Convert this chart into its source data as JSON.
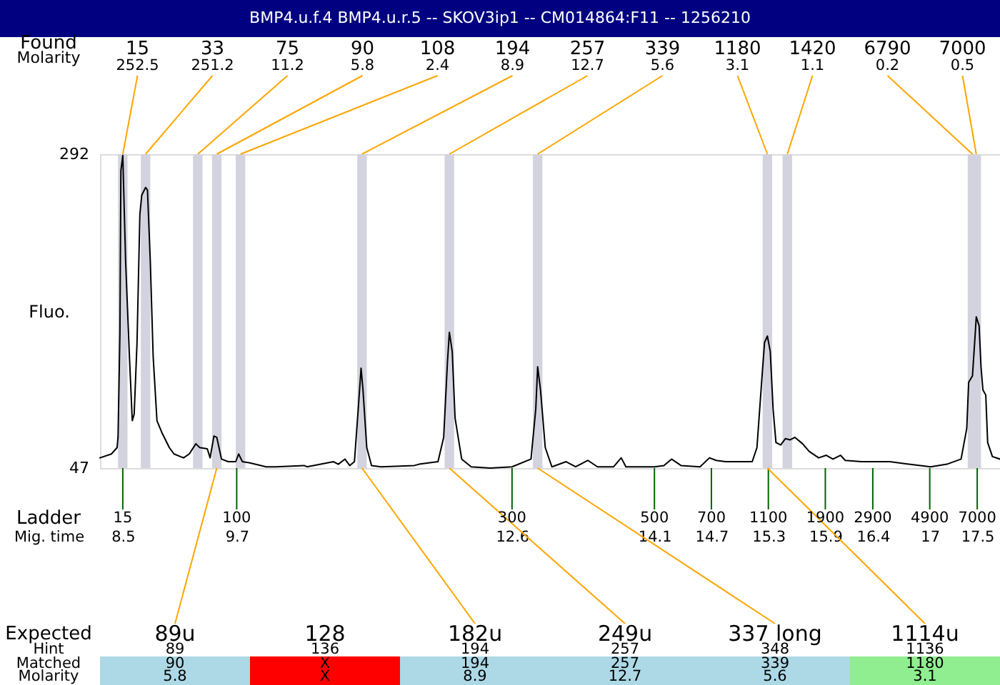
{
  "chart_data": {
    "type": "line",
    "title": "BMP4.u.f.4  BMP4.u.r.5 -- SKOV3ip1 -- CM014864:F11 -- 1256210",
    "ylabel": "Fluo.",
    "xlabel": "Mig. time",
    "xlim": [
      8.26,
      17.74
    ],
    "xticks": [
      8.5,
      9.7,
      12.6,
      14.1,
      14.7,
      15.3,
      15.9,
      16.4,
      17,
      17.5
    ],
    "ylim": [
      47,
      292
    ],
    "yticks": [
      47,
      292
    ],
    "series": [
      {
        "color": "#000000",
        "x": [
          8.26,
          8.38,
          8.44,
          8.45,
          8.47,
          8.48,
          8.5,
          8.53,
          8.57,
          8.6,
          8.62,
          8.65,
          8.68,
          8.7,
          8.74,
          8.76,
          8.79,
          8.82,
          8.86,
          8.91,
          8.99,
          9.04,
          9.14,
          9.2,
          9.27,
          9.31,
          9.39,
          9.42,
          9.46,
          9.49,
          9.54,
          9.61,
          9.69,
          9.72,
          9.76,
          9.84,
          10.01,
          10.11,
          10.41,
          10.44,
          10.72,
          10.77,
          10.84,
          10.89,
          10.94,
          10.98,
          11.01,
          11.03,
          11.07,
          11.12,
          11.22,
          11.57,
          11.62,
          11.82,
          11.88,
          11.92,
          11.94,
          11.97,
          12.0,
          12.07,
          12.17,
          12.37,
          12.6,
          12.8,
          12.85,
          12.87,
          12.9,
          12.95,
          13.02,
          13.17,
          13.27,
          13.4,
          13.5,
          13.67,
          13.75,
          13.8,
          14.1,
          14.2,
          14.28,
          14.38,
          14.58,
          14.68,
          14.75,
          14.85,
          15.13,
          15.18,
          15.23,
          15.26,
          15.29,
          15.32,
          15.35,
          15.38,
          15.43,
          15.48,
          15.53,
          15.58,
          15.66,
          15.73,
          15.83,
          15.91,
          15.98,
          16.06,
          16.11,
          16.28,
          16.58,
          16.78,
          17.01,
          17.18,
          17.33,
          17.39,
          17.41,
          17.45,
          17.48,
          17.49,
          17.52,
          17.54,
          17.56,
          17.59,
          17.61,
          17.66,
          17.74
        ],
        "values": [
          55,
          58,
          63,
          71,
          153,
          279,
          291,
          208,
          134,
          84,
          89,
          145,
          245,
          260,
          266,
          264,
          208,
          134,
          84,
          75,
          63,
          58,
          55,
          58,
          66,
          63,
          62,
          55,
          72,
          71,
          54,
          52,
          52,
          58,
          52,
          51,
          48,
          48,
          49,
          48,
          52,
          50,
          54,
          49,
          52,
          93,
          125,
          108,
          63,
          49,
          48,
          49,
          50,
          52,
          71,
          130,
          153,
          138,
          86,
          54,
          48,
          47,
          48,
          54,
          93,
          126,
          108,
          63,
          48,
          52,
          48,
          53,
          48,
          48,
          55,
          48,
          48,
          49,
          54,
          49,
          48,
          55,
          53,
          52,
          52,
          63,
          115,
          145,
          150,
          138,
          93,
          67,
          65,
          70,
          69,
          71,
          66,
          60,
          55,
          57,
          54,
          57,
          53,
          52,
          52,
          50,
          48,
          50,
          54,
          78,
          114,
          119,
          153,
          165,
          158,
          126,
          108,
          104,
          67,
          56,
          54
        ]
      }
    ],
    "bands": [
      {
        "axis": "x",
        "from": 8.45,
        "to": 8.55,
        "label": "15",
        "color": "#d3d3df"
      },
      {
        "axis": "x",
        "from": 8.69,
        "to": 8.79,
        "label": "33",
        "color": "#d3d3df"
      },
      {
        "axis": "x",
        "from": 9.24,
        "to": 9.34,
        "label": "75",
        "color": "#d3d3df"
      },
      {
        "axis": "x",
        "from": 9.44,
        "to": 9.54,
        "label": "90",
        "color": "#d3d3df"
      },
      {
        "axis": "x",
        "from": 9.69,
        "to": 9.79,
        "label": "108",
        "color": "#d3d3df"
      },
      {
        "axis": "x",
        "from": 10.97,
        "to": 11.07,
        "label": "194",
        "color": "#d3d3df"
      },
      {
        "axis": "x",
        "from": 11.89,
        "to": 11.99,
        "label": "257",
        "color": "#d3d3df"
      },
      {
        "axis": "x",
        "from": 12.82,
        "to": 12.92,
        "label": "339",
        "color": "#d3d3df"
      },
      {
        "axis": "x",
        "from": 15.24,
        "to": 15.34,
        "label": "1180",
        "color": "#d3d3df"
      },
      {
        "axis": "x",
        "from": 15.45,
        "to": 15.55,
        "label": "1420",
        "color": "#d3d3df"
      },
      {
        "axis": "x",
        "from": 17.4,
        "to": 17.5,
        "label": "6790",
        "color": "#d3d3df"
      },
      {
        "axis": "x",
        "from": 17.44,
        "to": 17.54,
        "label": "7000",
        "color": "#d3d3df"
      }
    ],
    "annotations": [
      "Found",
      "Molarity",
      {
        "text": "252.5",
        "x": 8.5,
        "y": 292
      },
      {
        "text": "251.2",
        "x": 8.74,
        "y": 292
      },
      {
        "text": "11.2",
        "x": 9.29,
        "y": 292
      },
      {
        "text": "5.8",
        "x": 9.49,
        "y": 292
      },
      {
        "text": "2.4",
        "x": 9.74,
        "y": 292
      },
      {
        "text": "8.9",
        "x": 11.02,
        "y": 292
      },
      {
        "text": "12.7",
        "x": 11.94,
        "y": 292
      },
      {
        "text": "5.6",
        "x": 12.87,
        "y": 292
      },
      {
        "text": "3.1",
        "x": 15.29,
        "y": 292
      },
      {
        "text": "1.1",
        "x": 15.5,
        "y": 292
      },
      {
        "text": "0.2",
        "x": 17.45,
        "y": 292
      },
      {
        "text": "0.5",
        "x": 17.49,
        "y": 292
      },
      "Ladder",
      "15",
      "100",
      "300",
      "500",
      "700",
      "1100",
      "1900",
      "2900",
      "4900",
      "7000",
      "Expected",
      "Hint",
      "Matched",
      "Molarity",
      {
        "text": "89u",
        "x": 9.49,
        "y": 47
      },
      "128",
      {
        "text": "182u",
        "x": 11.02,
        "y": 47
      },
      {
        "text": "249u",
        "x": 11.94,
        "y": 47
      },
      {
        "text": "337 long",
        "x": 12.87,
        "y": 47
      },
      {
        "text": "1114u",
        "x": 15.29,
        "y": 47
      },
      "89",
      "136",
      "194",
      "257",
      "348",
      "1136",
      "90",
      "X",
      "194",
      "257",
      "339",
      "1180",
      "5.8",
      "X",
      "8.9",
      "12.7",
      "5.6",
      "3.1"
    ]
  }
}
